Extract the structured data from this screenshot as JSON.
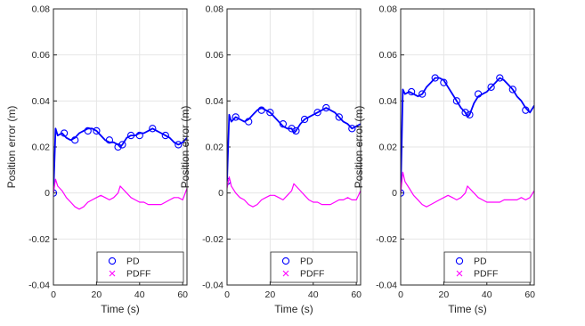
{
  "chart_data": [
    {
      "type": "line",
      "xlabel": "Time (s)",
      "ylabel": "Position error (m)",
      "xlim": [
        0,
        62
      ],
      "ylim": [
        -0.04,
        0.08
      ],
      "x_ticks": [
        "0",
        "20",
        "40",
        "60"
      ],
      "y_ticks": [
        "-0.04",
        "-0.02",
        "0",
        "0.02",
        "0.04",
        "0.06",
        "0.08"
      ],
      "grid": true,
      "legend": "bottom-right",
      "series": [
        {
          "name": "PD",
          "color": "#0000ff",
          "marker": "circle",
          "x": [
            0,
            1,
            2,
            4,
            6,
            8,
            10,
            12,
            14,
            16,
            18,
            20,
            22,
            24,
            26,
            28,
            30,
            31,
            32,
            34,
            36,
            38,
            40,
            42,
            44,
            46,
            48,
            50,
            52,
            54,
            56,
            58,
            60,
            62
          ],
          "y": [
            0.0,
            0.028,
            0.025,
            0.026,
            0.024,
            0.023,
            0.024,
            0.026,
            0.027,
            0.028,
            0.028,
            0.027,
            0.025,
            0.023,
            0.022,
            0.022,
            0.021,
            0.02,
            0.021,
            0.024,
            0.025,
            0.025,
            0.026,
            0.026,
            0.027,
            0.028,
            0.027,
            0.026,
            0.025,
            0.024,
            0.022,
            0.021,
            0.022,
            0.024
          ],
          "marker_x": [
            0,
            5,
            10,
            16,
            20,
            26,
            30,
            32,
            36,
            40,
            46,
            52,
            58
          ],
          "marker_y": [
            0.0,
            0.026,
            0.023,
            0.027,
            0.027,
            0.023,
            0.02,
            0.021,
            0.025,
            0.025,
            0.028,
            0.025,
            0.021
          ]
        },
        {
          "name": "PDFF",
          "color": "#ff00ff",
          "marker": "x",
          "x": [
            0,
            1,
            2,
            4,
            6,
            8,
            10,
            12,
            14,
            16,
            18,
            20,
            22,
            24,
            26,
            28,
            30,
            31,
            32,
            34,
            36,
            38,
            40,
            42,
            44,
            46,
            48,
            50,
            52,
            54,
            56,
            58,
            60,
            62
          ],
          "y": [
            0.0,
            0.006,
            0.003,
            0.001,
            -0.002,
            -0.004,
            -0.006,
            -0.007,
            -0.006,
            -0.004,
            -0.003,
            -0.002,
            -0.001,
            -0.002,
            -0.003,
            -0.002,
            0.0,
            0.003,
            0.002,
            0.0,
            -0.002,
            -0.003,
            -0.004,
            -0.004,
            -0.005,
            -0.005,
            -0.005,
            -0.005,
            -0.004,
            -0.003,
            -0.002,
            -0.002,
            -0.003,
            0.002
          ]
        }
      ]
    },
    {
      "type": "line",
      "xlabel": "Time (s)",
      "ylabel": "Position error (m)",
      "xlim": [
        0,
        62
      ],
      "ylim": [
        -0.04,
        0.08
      ],
      "x_ticks": [
        "0",
        "20",
        "40",
        "60"
      ],
      "y_ticks": [
        "-0.04",
        "-0.02",
        "0",
        "0.02",
        "0.04",
        "0.06",
        "0.08"
      ],
      "grid": true,
      "legend": "bottom-right",
      "series": [
        {
          "name": "PD",
          "color": "#0000ff",
          "marker": "circle",
          "x": [
            0,
            1,
            2,
            4,
            6,
            8,
            10,
            12,
            14,
            16,
            18,
            20,
            22,
            24,
            26,
            28,
            30,
            31,
            32,
            34,
            36,
            38,
            40,
            42,
            44,
            46,
            48,
            50,
            52,
            54,
            56,
            58,
            60,
            62
          ],
          "y": [
            0.005,
            0.034,
            0.031,
            0.033,
            0.032,
            0.031,
            0.032,
            0.034,
            0.036,
            0.037,
            0.036,
            0.035,
            0.033,
            0.031,
            0.029,
            0.028,
            0.028,
            0.026,
            0.027,
            0.03,
            0.032,
            0.033,
            0.034,
            0.035,
            0.036,
            0.037,
            0.036,
            0.035,
            0.033,
            0.031,
            0.03,
            0.028,
            0.029,
            0.03
          ],
          "marker_x": [
            0,
            4,
            10,
            16,
            20,
            26,
            30,
            32,
            36,
            42,
            46,
            52,
            58
          ],
          "marker_y": [
            0.005,
            0.033,
            0.031,
            0.036,
            0.035,
            0.03,
            0.028,
            0.027,
            0.032,
            0.035,
            0.037,
            0.033,
            0.028
          ]
        },
        {
          "name": "PDFF",
          "color": "#ff00ff",
          "marker": "x",
          "x": [
            0,
            1,
            2,
            4,
            6,
            8,
            10,
            12,
            14,
            16,
            18,
            20,
            22,
            24,
            26,
            28,
            30,
            31,
            32,
            34,
            36,
            38,
            40,
            42,
            44,
            46,
            48,
            50,
            52,
            54,
            56,
            58,
            60,
            62
          ],
          "y": [
            0.002,
            0.007,
            0.003,
            0.0,
            -0.002,
            -0.003,
            -0.005,
            -0.006,
            -0.005,
            -0.003,
            -0.002,
            -0.001,
            -0.001,
            -0.002,
            -0.003,
            -0.001,
            0.001,
            0.004,
            0.003,
            0.001,
            -0.001,
            -0.003,
            -0.004,
            -0.004,
            -0.005,
            -0.005,
            -0.005,
            -0.004,
            -0.003,
            -0.003,
            -0.002,
            -0.003,
            -0.003,
            0.001
          ]
        }
      ]
    },
    {
      "type": "line",
      "xlabel": "Time (s)",
      "ylabel": "Position error (m)",
      "xlim": [
        0,
        62
      ],
      "ylim": [
        -0.04,
        0.08
      ],
      "x_ticks": [
        "0",
        "20",
        "40",
        "60"
      ],
      "y_ticks": [
        "-0.04",
        "-0.02",
        "0",
        "0.02",
        "0.04",
        "0.06",
        "0.08"
      ],
      "grid": true,
      "legend": "bottom-right",
      "series": [
        {
          "name": "PD",
          "color": "#0000ff",
          "marker": "circle",
          "x": [
            0,
            1,
            2,
            4,
            6,
            8,
            10,
            12,
            14,
            16,
            18,
            20,
            22,
            24,
            26,
            28,
            30,
            31,
            32,
            34,
            36,
            38,
            40,
            42,
            44,
            46,
            48,
            50,
            52,
            54,
            56,
            58,
            60,
            62
          ],
          "y": [
            0.0,
            0.045,
            0.043,
            0.044,
            0.043,
            0.042,
            0.043,
            0.046,
            0.048,
            0.05,
            0.05,
            0.049,
            0.046,
            0.043,
            0.04,
            0.037,
            0.035,
            0.033,
            0.034,
            0.039,
            0.042,
            0.043,
            0.044,
            0.046,
            0.048,
            0.05,
            0.049,
            0.047,
            0.045,
            0.042,
            0.04,
            0.037,
            0.035,
            0.038
          ],
          "marker_x": [
            0,
            5,
            10,
            16,
            20,
            26,
            30,
            32,
            36,
            42,
            46,
            52,
            58
          ],
          "marker_y": [
            0.0,
            0.044,
            0.043,
            0.05,
            0.048,
            0.04,
            0.035,
            0.034,
            0.043,
            0.046,
            0.05,
            0.045,
            0.036
          ]
        },
        {
          "name": "PDFF",
          "color": "#ff00ff",
          "marker": "x",
          "x": [
            0,
            1,
            2,
            4,
            6,
            8,
            10,
            12,
            14,
            16,
            18,
            20,
            22,
            24,
            26,
            28,
            30,
            31,
            32,
            34,
            36,
            38,
            40,
            42,
            44,
            46,
            48,
            50,
            52,
            54,
            56,
            58,
            60,
            62
          ],
          "y": [
            0.0,
            0.009,
            0.005,
            0.002,
            -0.001,
            -0.003,
            -0.005,
            -0.006,
            -0.005,
            -0.004,
            -0.003,
            -0.002,
            -0.001,
            -0.002,
            -0.003,
            -0.002,
            0.0,
            0.003,
            0.002,
            0.0,
            -0.002,
            -0.003,
            -0.004,
            -0.004,
            -0.004,
            -0.004,
            -0.003,
            -0.003,
            -0.003,
            -0.003,
            -0.002,
            -0.003,
            -0.002,
            0.001
          ]
        }
      ]
    }
  ]
}
